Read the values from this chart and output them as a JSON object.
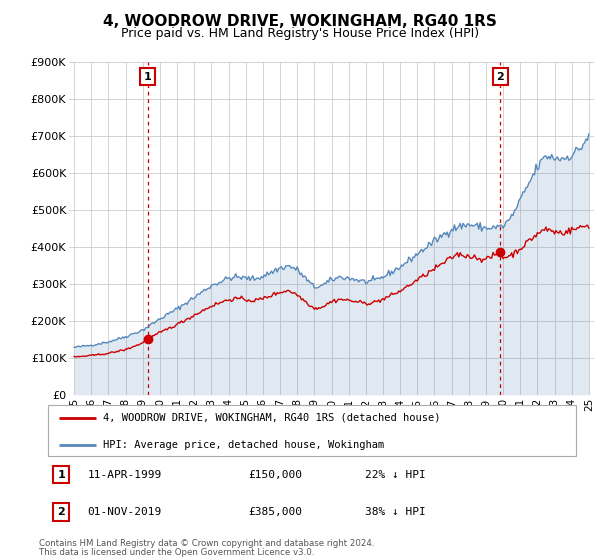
{
  "title": "4, WOODROW DRIVE, WOKINGHAM, RG40 1RS",
  "subtitle": "Price paid vs. HM Land Registry's House Price Index (HPI)",
  "line1_label": "4, WOODROW DRIVE, WOKINGHAM, RG40 1RS (detached house)",
  "line2_label": "HPI: Average price, detached house, Wokingham",
  "line1_color": "#cc0000",
  "line2_color": "#5588bb",
  "point1": {
    "year": 1999.28,
    "value": 150000,
    "label": "1",
    "date": "11-APR-1999",
    "price": "£150,000",
    "note": "22% ↓ HPI"
  },
  "point2": {
    "year": 2019.84,
    "value": 385000,
    "label": "2",
    "date": "01-NOV-2019",
    "price": "£385,000",
    "note": "38% ↓ HPI"
  },
  "footer1": "Contains HM Land Registry data © Crown copyright and database right 2024.",
  "footer2": "This data is licensed under the Open Government Licence v3.0.",
  "ylim": [
    0,
    900000
  ],
  "xlim": [
    1994.7,
    2025.3
  ],
  "yticks": [
    0,
    100000,
    200000,
    300000,
    400000,
    500000,
    600000,
    700000,
    800000,
    900000
  ],
  "ytick_labels": [
    "£0",
    "£100K",
    "£200K",
    "£300K",
    "£400K",
    "£500K",
    "£600K",
    "£700K",
    "£800K",
    "£900K"
  ],
  "xticks": [
    1995,
    1996,
    1997,
    1998,
    1999,
    2000,
    2001,
    2002,
    2003,
    2004,
    2005,
    2006,
    2007,
    2008,
    2009,
    2010,
    2011,
    2012,
    2013,
    2014,
    2015,
    2016,
    2017,
    2018,
    2019,
    2020,
    2021,
    2022,
    2023,
    2024,
    2025
  ],
  "vline1_x": 1999.28,
  "vline2_x": 2019.84,
  "grid_color": "#cccccc",
  "background_color": "#ffffff",
  "title_fontsize": 11,
  "subtitle_fontsize": 9
}
